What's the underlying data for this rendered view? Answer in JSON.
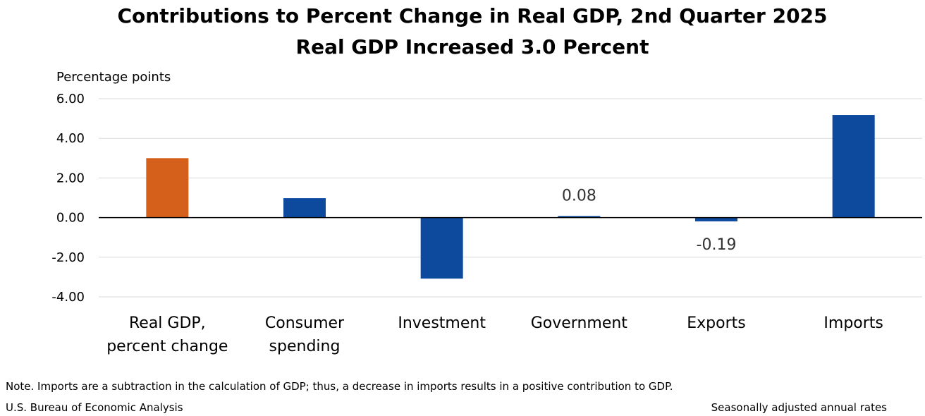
{
  "chart_data": {
    "type": "bar",
    "title": "Contributions to Percent Change in Real GDP, 2nd Quarter 2025",
    "subtitle": "Real GDP Increased 3.0 Percent",
    "ylabel": "Percentage points",
    "xlabel": "",
    "ylim": [
      -4,
      6
    ],
    "yticks": [
      "6.00",
      "4.00",
      "2.00",
      "0.00",
      "-2.00",
      "-4.00"
    ],
    "ytick_values": [
      6,
      4,
      2,
      0,
      -2,
      -4
    ],
    "grid": true,
    "categories": [
      [
        "Real GDP,",
        "percent change"
      ],
      [
        "Consumer",
        "spending"
      ],
      [
        "Investment"
      ],
      [
        "Government"
      ],
      [
        "Exports"
      ],
      [
        "Imports"
      ]
    ],
    "values": [
      3.0,
      0.98,
      -3.08,
      0.08,
      -0.19,
      5.18
    ],
    "data_labels": [
      null,
      null,
      null,
      "0.08",
      "-0.19",
      null
    ],
    "colors": [
      "#d4601b",
      "#0d4a9e",
      "#0d4a9e",
      "#0d4a9e",
      "#0d4a9e",
      "#0d4a9e"
    ],
    "gridline_color": "#d9d9d9",
    "zero_line_color": "#000000"
  },
  "footer": {
    "note": "Note. Imports are a subtraction in the calculation of GDP; thus, a decrease in imports results in a positive contribution to GDP.",
    "source": "U.S. Bureau of Economic Analysis",
    "rates": "Seasonally adjusted annual rates"
  }
}
